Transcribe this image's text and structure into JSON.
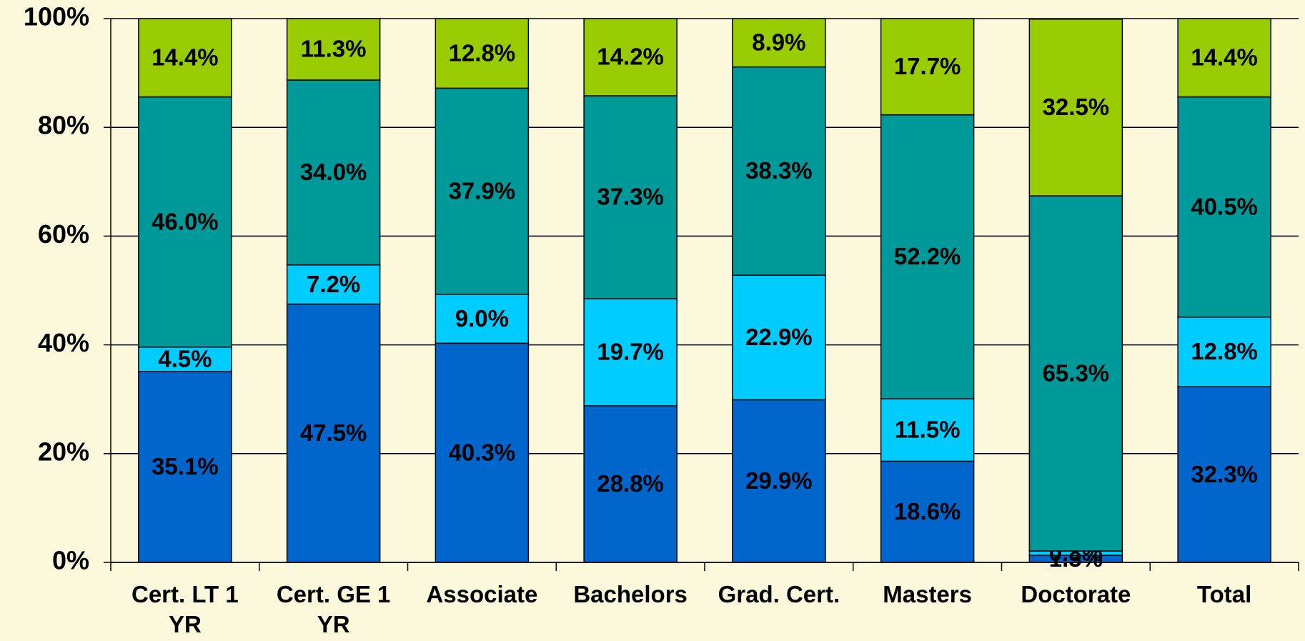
{
  "chart_data": {
    "type": "stacked_bar",
    "categories": [
      "Cert. LT 1 YR",
      "Cert. GE 1 YR",
      "Associate",
      "Bachelors",
      "Grad. Cert.",
      "Masters",
      "Doctorate",
      "Total"
    ],
    "series": [
      {
        "color": "#0066cc",
        "values": [
          35.1,
          47.5,
          40.3,
          28.8,
          29.9,
          18.6,
          1.3,
          32.3
        ],
        "value_labels": [
          "35.1%",
          "47.5%",
          "40.3%",
          "28.8%",
          "29.9%",
          "18.6%",
          "1.3%",
          "32.3%"
        ]
      },
      {
        "color": "#00ccff",
        "values": [
          4.5,
          7.2,
          9.0,
          19.7,
          22.9,
          11.5,
          0.8,
          12.8
        ],
        "value_labels": [
          "4.5%",
          "7.2%",
          "9.0%",
          "19.7%",
          "22.9%",
          "11.5%",
          "0.8%",
          "12.8%"
        ]
      },
      {
        "color": "#009999",
        "values": [
          46.0,
          34.0,
          37.9,
          37.3,
          38.3,
          52.2,
          65.3,
          40.5
        ],
        "value_labels": [
          "46.0%",
          "34.0%",
          "37.9%",
          "37.3%",
          "38.3%",
          "52.2%",
          "65.3%",
          "40.5%"
        ]
      },
      {
        "color": "#99cc00",
        "values": [
          14.4,
          11.3,
          12.8,
          14.2,
          8.9,
          17.7,
          32.5,
          14.4
        ],
        "value_labels": [
          "14.4%",
          "11.3%",
          "12.8%",
          "14.2%",
          "8.9%",
          "17.7%",
          "32.5%",
          "14.4%"
        ]
      }
    ],
    "ylim": [
      0,
      100
    ],
    "yticks": [
      {
        "value": 0,
        "label": "0%"
      },
      {
        "value": 20,
        "label": "20%"
      },
      {
        "value": 40,
        "label": "40%"
      },
      {
        "value": 60,
        "label": "60%"
      },
      {
        "value": 80,
        "label": "80%"
      },
      {
        "value": 100,
        "label": "100%"
      }
    ],
    "grid": true
  }
}
